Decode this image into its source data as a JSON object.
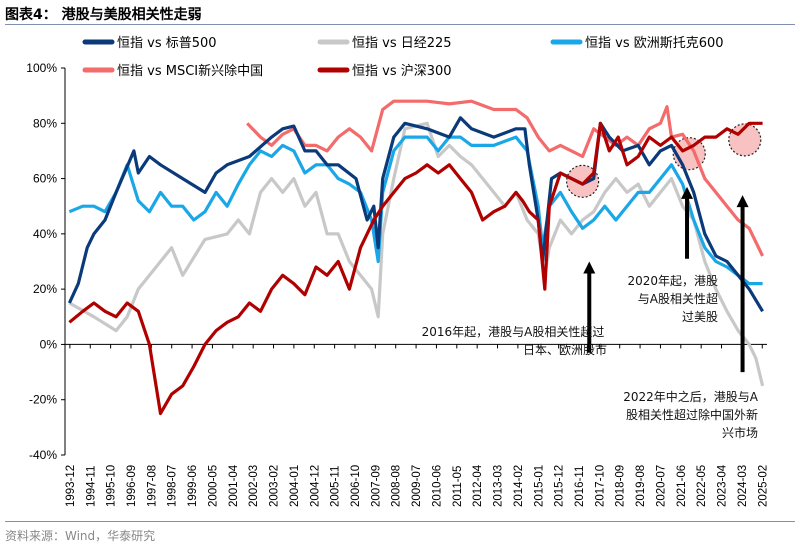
{
  "title": "图表4： 港股与美股相关性走弱",
  "source": "资料来源：Wind，华泰研究",
  "chart_data": {
    "type": "line",
    "ylabel": "",
    "xlabel": "",
    "ylim": [
      -40,
      100
    ],
    "yticks": [
      -40,
      -20,
      0,
      20,
      40,
      60,
      80,
      100
    ],
    "ytick_labels": [
      "-40%",
      "-20%",
      "0%",
      "20%",
      "40%",
      "60%",
      "80%",
      "100%"
    ],
    "xlim": [
      1993.7,
      2025.3
    ],
    "x_tick_labels": [
      "1993-12",
      "1994-11",
      "1995-10",
      "1996-09",
      "1997-08",
      "1998-07",
      "1999-06",
      "2000-05",
      "2001-04",
      "2002-03",
      "2003-02",
      "2004-01",
      "2004-12",
      "2005-11",
      "2006-10",
      "2007-09",
      "2008-08",
      "2009-07",
      "2010-06",
      "2011-05",
      "2012-04",
      "2013-03",
      "2014-02",
      "2015-01",
      "2015-12",
      "2016-11",
      "2017-10",
      "2018-09",
      "2019-08",
      "2020-07",
      "2021-06",
      "2022-05",
      "2023-04",
      "2024-03",
      "2025-02"
    ],
    "legend_position": "top",
    "series": [
      {
        "name": "恒指 vs 标普500",
        "color": "#0b3a7a",
        "points": [
          [
            1993.9,
            15
          ],
          [
            1994.3,
            22
          ],
          [
            1994.7,
            35
          ],
          [
            1995,
            40
          ],
          [
            1995.5,
            45
          ],
          [
            1996,
            55
          ],
          [
            1996.8,
            70
          ],
          [
            1997,
            62
          ],
          [
            1997.5,
            68
          ],
          [
            1998,
            65
          ],
          [
            1999,
            60
          ],
          [
            2000,
            55
          ],
          [
            2000.5,
            62
          ],
          [
            2001,
            65
          ],
          [
            2002,
            68
          ],
          [
            2003,
            75
          ],
          [
            2003.5,
            78
          ],
          [
            2004,
            79
          ],
          [
            2004.5,
            70
          ],
          [
            2005,
            70
          ],
          [
            2005.5,
            65
          ],
          [
            2006,
            65
          ],
          [
            2006.8,
            60
          ],
          [
            2007.3,
            45
          ],
          [
            2007.6,
            50
          ],
          [
            2007.8,
            35
          ],
          [
            2008,
            60
          ],
          [
            2008.5,
            75
          ],
          [
            2009,
            80
          ],
          [
            2010,
            78
          ],
          [
            2011,
            75
          ],
          [
            2011.5,
            82
          ],
          [
            2012,
            78
          ],
          [
            2013,
            75
          ],
          [
            2014,
            78
          ],
          [
            2014.4,
            78
          ],
          [
            2014.6,
            65
          ],
          [
            2015,
            45
          ],
          [
            2015.2,
            30
          ],
          [
            2015.4,
            45
          ],
          [
            2015.6,
            60
          ],
          [
            2016,
            62
          ],
          [
            2016.5,
            60
          ],
          [
            2017,
            58
          ],
          [
            2017.5,
            60
          ],
          [
            2017.8,
            80
          ],
          [
            2018.2,
            75
          ],
          [
            2018.8,
            70
          ],
          [
            2019.5,
            72
          ],
          [
            2020,
            65
          ],
          [
            2020.5,
            70
          ],
          [
            2021,
            72
          ],
          [
            2021.5,
            65
          ],
          [
            2022,
            55
          ],
          [
            2022.5,
            40
          ],
          [
            2023,
            32
          ],
          [
            2023.5,
            30
          ],
          [
            2024,
            25
          ],
          [
            2024.5,
            20
          ],
          [
            2025.1,
            12
          ]
        ]
      },
      {
        "name": "恒指 vs 日经225",
        "color": "#c8c8c8",
        "points": [
          [
            1993.9,
            15
          ],
          [
            1995,
            10
          ],
          [
            1996,
            5
          ],
          [
            1996.5,
            10
          ],
          [
            1997,
            20
          ],
          [
            1998,
            30
          ],
          [
            1998.5,
            35
          ],
          [
            1999,
            25
          ],
          [
            2000,
            38
          ],
          [
            2001,
            40
          ],
          [
            2001.5,
            45
          ],
          [
            2002,
            40
          ],
          [
            2002.5,
            55
          ],
          [
            2003,
            60
          ],
          [
            2003.5,
            55
          ],
          [
            2004,
            60
          ],
          [
            2004.5,
            50
          ],
          [
            2005,
            55
          ],
          [
            2005.5,
            40
          ],
          [
            2006,
            40
          ],
          [
            2006.5,
            30
          ],
          [
            2007,
            25
          ],
          [
            2007.5,
            20
          ],
          [
            2007.8,
            10
          ],
          [
            2008,
            40
          ],
          [
            2008.5,
            60
          ],
          [
            2009,
            78
          ],
          [
            2010,
            80
          ],
          [
            2010.5,
            68
          ],
          [
            2011,
            72
          ],
          [
            2011.5,
            68
          ],
          [
            2012,
            65
          ],
          [
            2013,
            55
          ],
          [
            2013.5,
            50
          ],
          [
            2014,
            55
          ],
          [
            2014.5,
            45
          ],
          [
            2015,
            40
          ],
          [
            2015.3,
            25
          ],
          [
            2015.5,
            35
          ],
          [
            2016,
            45
          ],
          [
            2016.5,
            40
          ],
          [
            2017,
            45
          ],
          [
            2017.5,
            48
          ],
          [
            2018,
            55
          ],
          [
            2018.5,
            60
          ],
          [
            2019,
            55
          ],
          [
            2019.5,
            58
          ],
          [
            2020,
            50
          ],
          [
            2020.5,
            55
          ],
          [
            2021,
            60
          ],
          [
            2021.5,
            50
          ],
          [
            2022,
            45
          ],
          [
            2022.5,
            30
          ],
          [
            2023,
            20
          ],
          [
            2023.5,
            12
          ],
          [
            2024,
            5
          ],
          [
            2024.5,
            0
          ],
          [
            2024.8,
            -5
          ],
          [
            2025.1,
            -15
          ]
        ]
      },
      {
        "name": "恒指 vs 欧洲斯托克600",
        "color": "#1aa7e8",
        "points": [
          [
            1993.9,
            48
          ],
          [
            1994.5,
            50
          ],
          [
            1995,
            50
          ],
          [
            1995.5,
            48
          ],
          [
            1996,
            55
          ],
          [
            1996.5,
            65
          ],
          [
            1997,
            52
          ],
          [
            1997.5,
            48
          ],
          [
            1998,
            55
          ],
          [
            1998.5,
            50
          ],
          [
            1999,
            50
          ],
          [
            1999.5,
            45
          ],
          [
            2000,
            48
          ],
          [
            2000.5,
            55
          ],
          [
            2001,
            50
          ],
          [
            2001.5,
            58
          ],
          [
            2002,
            65
          ],
          [
            2002.5,
            70
          ],
          [
            2003,
            68
          ],
          [
            2003.5,
            72
          ],
          [
            2004,
            70
          ],
          [
            2004.5,
            62
          ],
          [
            2005,
            65
          ],
          [
            2005.5,
            65
          ],
          [
            2006,
            60
          ],
          [
            2006.5,
            58
          ],
          [
            2007,
            55
          ],
          [
            2007.5,
            45
          ],
          [
            2007.8,
            30
          ],
          [
            2008,
            55
          ],
          [
            2008.5,
            70
          ],
          [
            2009,
            75
          ],
          [
            2010,
            75
          ],
          [
            2010.5,
            70
          ],
          [
            2011,
            75
          ],
          [
            2011.5,
            75
          ],
          [
            2012,
            72
          ],
          [
            2013,
            72
          ],
          [
            2014,
            75
          ],
          [
            2014.5,
            70
          ],
          [
            2015,
            50
          ],
          [
            2015.2,
            35
          ],
          [
            2015.5,
            50
          ],
          [
            2016,
            55
          ],
          [
            2016.5,
            48
          ],
          [
            2017,
            42
          ],
          [
            2017.5,
            45
          ],
          [
            2018,
            50
          ],
          [
            2018.5,
            45
          ],
          [
            2019,
            50
          ],
          [
            2019.5,
            55
          ],
          [
            2020,
            55
          ],
          [
            2020.5,
            60
          ],
          [
            2021,
            65
          ],
          [
            2021.5,
            58
          ],
          [
            2022,
            45
          ],
          [
            2022.5,
            35
          ],
          [
            2023,
            30
          ],
          [
            2023.5,
            28
          ],
          [
            2024,
            25
          ],
          [
            2024.5,
            22
          ],
          [
            2025.1,
            22
          ]
        ]
      },
      {
        "name": "恒指 vs MSCI新兴除中国",
        "color": "#f36b6b",
        "points": [
          [
            2001.9,
            80
          ],
          [
            2002.5,
            75
          ],
          [
            2003,
            72
          ],
          [
            2003.5,
            76
          ],
          [
            2004,
            78
          ],
          [
            2004.5,
            72
          ],
          [
            2005,
            72
          ],
          [
            2005.5,
            70
          ],
          [
            2006,
            75
          ],
          [
            2006.5,
            78
          ],
          [
            2007,
            75
          ],
          [
            2007.5,
            70
          ],
          [
            2008,
            85
          ],
          [
            2008.5,
            88
          ],
          [
            2009,
            88
          ],
          [
            2010,
            88
          ],
          [
            2011,
            87
          ],
          [
            2012,
            88
          ],
          [
            2013,
            85
          ],
          [
            2014,
            85
          ],
          [
            2014.5,
            82
          ],
          [
            2015,
            75
          ],
          [
            2015.5,
            70
          ],
          [
            2016,
            72
          ],
          [
            2016.5,
            70
          ],
          [
            2017,
            68
          ],
          [
            2017.5,
            78
          ],
          [
            2018,
            75
          ],
          [
            2018.5,
            72
          ],
          [
            2019,
            75
          ],
          [
            2019.5,
            72
          ],
          [
            2020,
            78
          ],
          [
            2020.5,
            80
          ],
          [
            2020.8,
            86
          ],
          [
            2021,
            75
          ],
          [
            2021.5,
            76
          ],
          [
            2022,
            70
          ],
          [
            2022.5,
            60
          ],
          [
            2023,
            55
          ],
          [
            2023.5,
            50
          ],
          [
            2024,
            45
          ],
          [
            2024.5,
            42
          ],
          [
            2025.1,
            32
          ]
        ]
      },
      {
        "name": "恒指 vs 沪深300",
        "color": "#b00000",
        "points": [
          [
            1993.9,
            8
          ],
          [
            1994.5,
            12
          ],
          [
            1995,
            15
          ],
          [
            1995.5,
            12
          ],
          [
            1996,
            10
          ],
          [
            1996.5,
            15
          ],
          [
            1997,
            12
          ],
          [
            1997.5,
            0
          ],
          [
            1998,
            -25
          ],
          [
            1998.5,
            -18
          ],
          [
            1999,
            -15
          ],
          [
            1999.5,
            -8
          ],
          [
            2000,
            0
          ],
          [
            2000.5,
            5
          ],
          [
            2001,
            8
          ],
          [
            2001.5,
            10
          ],
          [
            2002,
            15
          ],
          [
            2002.5,
            12
          ],
          [
            2003,
            20
          ],
          [
            2003.5,
            25
          ],
          [
            2004,
            22
          ],
          [
            2004.5,
            18
          ],
          [
            2005,
            28
          ],
          [
            2005.5,
            25
          ],
          [
            2006,
            30
          ],
          [
            2006.5,
            20
          ],
          [
            2007,
            35
          ],
          [
            2007.3,
            40
          ],
          [
            2007.6,
            45
          ],
          [
            2008,
            50
          ],
          [
            2008.5,
            55
          ],
          [
            2009,
            60
          ],
          [
            2009.5,
            62
          ],
          [
            2010,
            65
          ],
          [
            2010.5,
            62
          ],
          [
            2011,
            65
          ],
          [
            2011.5,
            60
          ],
          [
            2012,
            55
          ],
          [
            2012.5,
            45
          ],
          [
            2013,
            48
          ],
          [
            2013.5,
            50
          ],
          [
            2014,
            55
          ],
          [
            2014.3,
            52
          ],
          [
            2014.6,
            48
          ],
          [
            2015,
            45
          ],
          [
            2015.3,
            20
          ],
          [
            2015.5,
            50
          ],
          [
            2016,
            62
          ],
          [
            2016.5,
            60
          ],
          [
            2017,
            58
          ],
          [
            2017.5,
            62
          ],
          [
            2017.8,
            80
          ],
          [
            2018.2,
            70
          ],
          [
            2018.6,
            75
          ],
          [
            2019,
            65
          ],
          [
            2019.5,
            68
          ],
          [
            2020,
            75
          ],
          [
            2020.5,
            72
          ],
          [
            2021,
            75
          ],
          [
            2021.5,
            70
          ],
          [
            2022,
            72
          ],
          [
            2022.5,
            75
          ],
          [
            2023,
            75
          ],
          [
            2023.5,
            78
          ],
          [
            2024,
            76
          ],
          [
            2024.5,
            80
          ],
          [
            2025.1,
            80
          ]
        ]
      }
    ],
    "annotations": [
      {
        "text": [
          "2016年起，港股与A股相关性超过",
          "日本、欧洲股市"
        ],
        "arrow": {
          "x": 2017.3,
          "from": -3,
          "to": 30
        }
      },
      {
        "text": [
          "2020年起，港股",
          "与A股相关性超",
          "过美股"
        ],
        "arrow": {
          "x": 2021.7,
          "from": 31,
          "to": 57
        }
      },
      {
        "text": [
          "2022年中之后，港股与A",
          "股相关性超过除中国外新",
          "兴市场"
        ],
        "arrow": {
          "x": 2024.2,
          "from": -10,
          "to": 54
        }
      }
    ],
    "highlights": [
      {
        "x": 2017.0,
        "y": 59
      },
      {
        "x": 2021.8,
        "y": 69
      },
      {
        "x": 2024.3,
        "y": 74
      }
    ]
  }
}
